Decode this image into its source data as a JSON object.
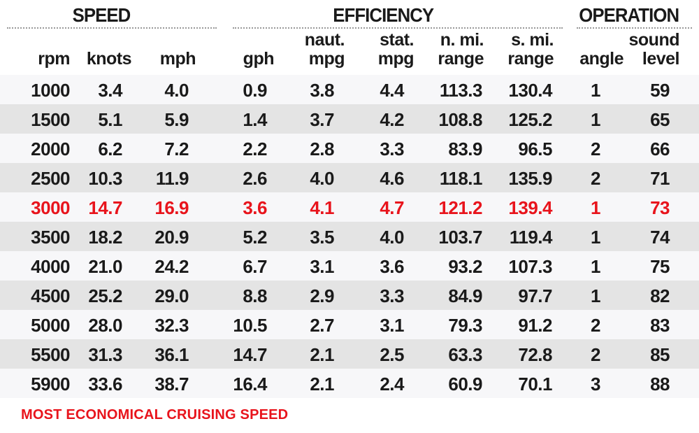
{
  "groups": {
    "speed": "SPEED",
    "efficiency": "EFFICIENCY",
    "operation": "OPERATION"
  },
  "headers": [
    [
      "",
      "rpm"
    ],
    [
      "",
      "knots"
    ],
    [
      "",
      "mph"
    ],
    [
      "",
      "gph"
    ],
    [
      "naut.",
      "mpg"
    ],
    [
      "stat.",
      "mpg"
    ],
    [
      "n. mi.",
      "range"
    ],
    [
      "s. mi.",
      "range"
    ],
    [
      "",
      "angle"
    ],
    [
      "sound",
      "level"
    ]
  ],
  "highlight_color": "#e8141c",
  "footnote": "MOST ECONOMICAL CRUISING SPEED",
  "chart_data": {
    "type": "table",
    "columns": [
      "rpm",
      "knots",
      "mph",
      "gph",
      "naut. mpg",
      "stat. mpg",
      "n. mi. range",
      "s. mi. range",
      "angle",
      "sound level"
    ],
    "highlighted_row": 4,
    "rows": [
      [
        "1000",
        "3.4",
        "4.0",
        "0.9",
        "3.8",
        "4.4",
        "113.3",
        "130.4",
        "1",
        "59"
      ],
      [
        "1500",
        "5.1",
        "5.9",
        "1.4",
        "3.7",
        "4.2",
        "108.8",
        "125.2",
        "1",
        "65"
      ],
      [
        "2000",
        "6.2",
        "7.2",
        "2.2",
        "2.8",
        "3.3",
        "83.9",
        "96.5",
        "2",
        "66"
      ],
      [
        "2500",
        "10.3",
        "11.9",
        "2.6",
        "4.0",
        "4.6",
        "118.1",
        "135.9",
        "2",
        "71"
      ],
      [
        "3000",
        "14.7",
        "16.9",
        "3.6",
        "4.1",
        "4.7",
        "121.2",
        "139.4",
        "1",
        "73"
      ],
      [
        "3500",
        "18.2",
        "20.9",
        "5.2",
        "3.5",
        "4.0",
        "103.7",
        "119.4",
        "1",
        "74"
      ],
      [
        "4000",
        "21.0",
        "24.2",
        "6.7",
        "3.1",
        "3.6",
        "93.2",
        "107.3",
        "1",
        "75"
      ],
      [
        "4500",
        "25.2",
        "29.0",
        "8.8",
        "2.9",
        "3.3",
        "84.9",
        "97.7",
        "1",
        "82"
      ],
      [
        "5000",
        "28.0",
        "32.3",
        "10.5",
        "2.7",
        "3.1",
        "79.3",
        "91.2",
        "2",
        "83"
      ],
      [
        "5500",
        "31.3",
        "36.1",
        "14.7",
        "2.1",
        "2.5",
        "63.3",
        "72.8",
        "2",
        "85"
      ],
      [
        "5900",
        "33.6",
        "38.7",
        "16.4",
        "2.1",
        "2.4",
        "60.9",
        "70.1",
        "3",
        "88"
      ]
    ]
  }
}
